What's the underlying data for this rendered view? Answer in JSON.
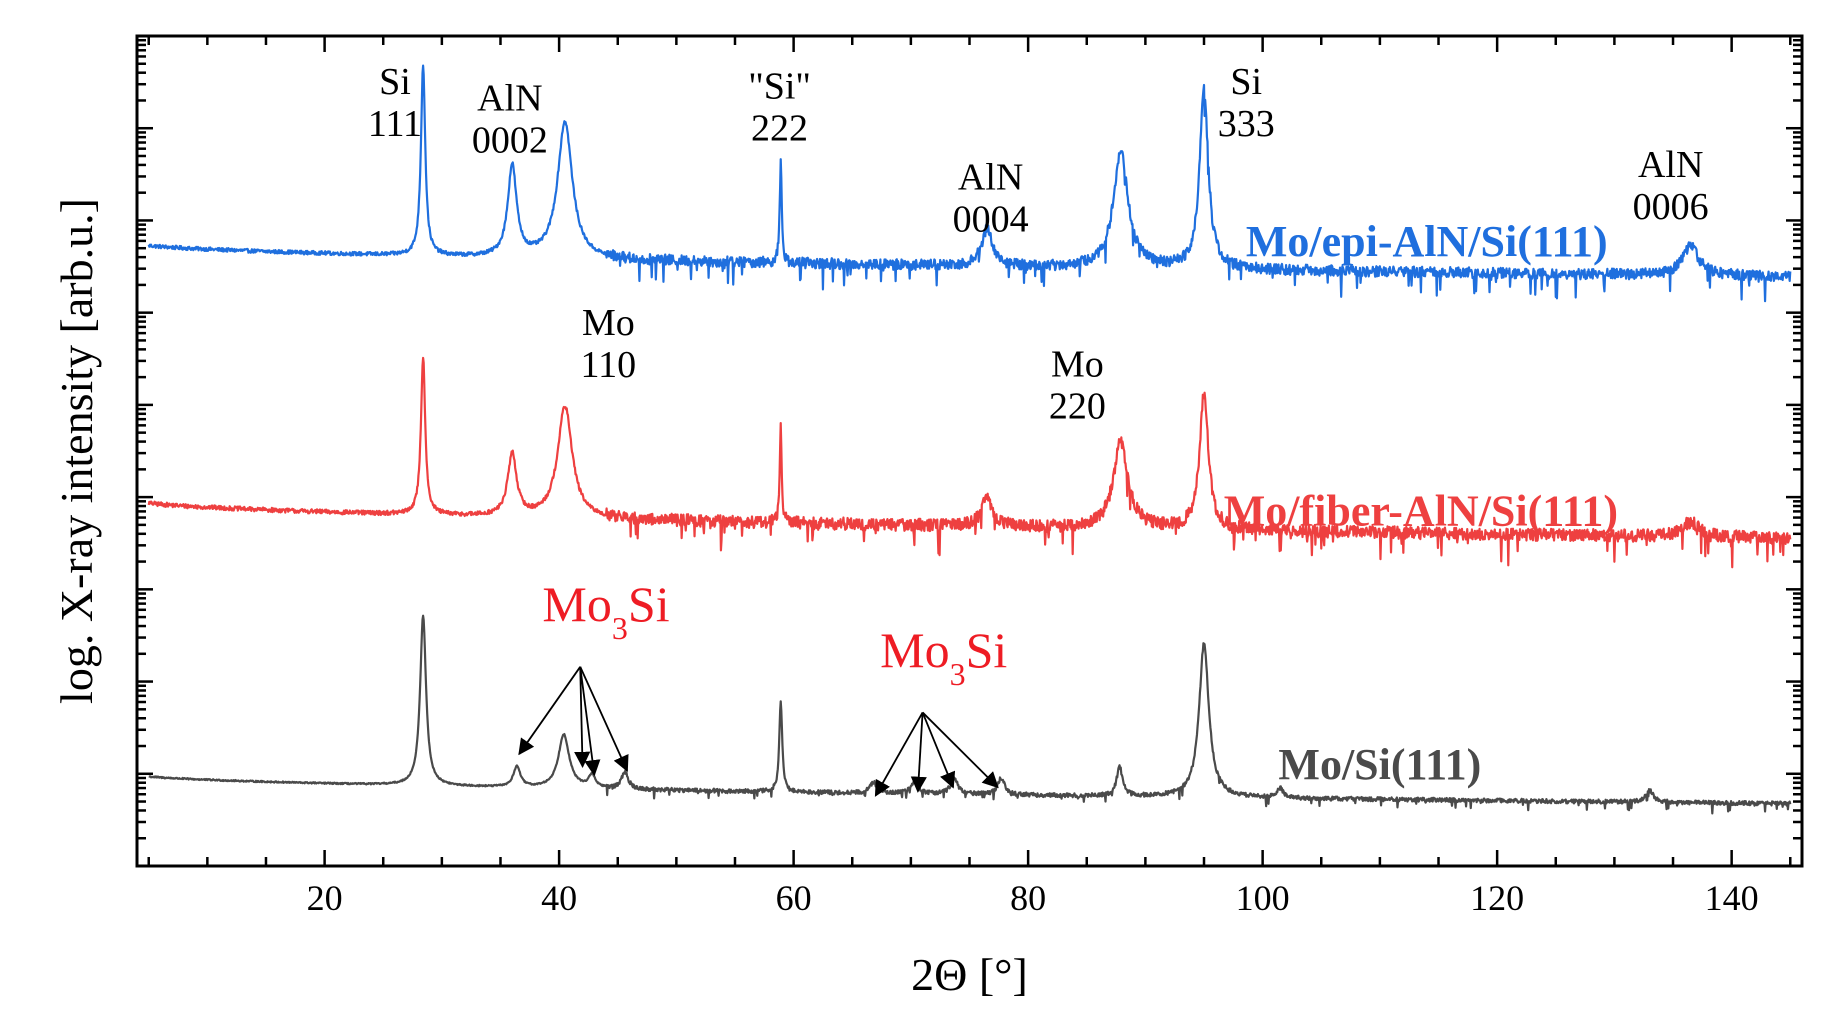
{
  "chart_data": {
    "type": "line",
    "title": "",
    "xlabel": "2Θ [°]",
    "ylabel": "log. X-ray intensity [arb.u.]",
    "xlim": [
      4,
      146
    ],
    "ylim": [
      0,
      100
    ],
    "x_ticks": [
      20,
      40,
      60,
      80,
      100,
      120,
      140
    ],
    "x_tick_labels": [
      "20",
      "40",
      "60",
      "80",
      "100",
      "120",
      "140"
    ],
    "y_ticks_labeled": false,
    "series": [
      {
        "name": "Mo/epi-AlN/Si(111)",
        "color": "#1f6fde",
        "baseline_start": 75.0,
        "baseline_end": 71.0,
        "noise": 1.3,
        "noise_onset": 44,
        "peaks": [
          {
            "x": 28.4,
            "height": 23.0,
            "width": 0.22
          },
          {
            "x": 36.0,
            "height": 11.0,
            "width": 0.45
          },
          {
            "x": 40.5,
            "height": 16.5,
            "width": 0.75
          },
          {
            "x": 58.9,
            "height": 12.5,
            "width": 0.1
          },
          {
            "x": 76.5,
            "height": 4.5,
            "width": 0.55
          },
          {
            "x": 87.9,
            "height": 14.0,
            "width": 0.75
          },
          {
            "x": 95.0,
            "height": 21.5,
            "width": 0.45
          },
          {
            "x": 136.5,
            "height": 3.5,
            "width": 0.85
          }
        ]
      },
      {
        "name": "Mo/fiber-AlN/Si(111)",
        "color": "#ee4040",
        "baseline_start": 44.0,
        "baseline_end": 39.5,
        "noise": 1.5,
        "noise_onset": 44,
        "peaks": [
          {
            "x": 28.4,
            "height": 19.0,
            "width": 0.22
          },
          {
            "x": 36.0,
            "height": 7.5,
            "width": 0.45
          },
          {
            "x": 40.5,
            "height": 13.5,
            "width": 0.75
          },
          {
            "x": 58.9,
            "height": 11.5,
            "width": 0.1
          },
          {
            "x": 76.5,
            "height": 3.5,
            "width": 0.55
          },
          {
            "x": 87.9,
            "height": 10.5,
            "width": 0.75
          },
          {
            "x": 95.0,
            "height": 16.5,
            "width": 0.45
          },
          {
            "x": 136.5,
            "height": 1.8,
            "width": 0.85
          }
        ]
      },
      {
        "name": "Mo/Si(111)",
        "color": "#4a4a4a",
        "baseline_start": 11.0,
        "baseline_end": 7.5,
        "noise": 0.5,
        "noise_onset": 44,
        "peaks": [
          {
            "x": 28.4,
            "height": 20.5,
            "width": 0.3
          },
          {
            "x": 36.4,
            "height": 2.5,
            "width": 0.35
          },
          {
            "x": 40.4,
            "height": 6.5,
            "width": 0.55
          },
          {
            "x": 42.8,
            "height": 1.5,
            "width": 0.35
          },
          {
            "x": 45.6,
            "height": 2.0,
            "width": 0.35
          },
          {
            "x": 58.9,
            "height": 11.0,
            "width": 0.15
          },
          {
            "x": 66.8,
            "height": 1.3,
            "width": 0.35
          },
          {
            "x": 70.3,
            "height": 1.5,
            "width": 0.35
          },
          {
            "x": 73.7,
            "height": 2.0,
            "width": 0.35
          },
          {
            "x": 77.7,
            "height": 2.0,
            "width": 0.35
          },
          {
            "x": 87.8,
            "height": 3.5,
            "width": 0.3
          },
          {
            "x": 95.0,
            "height": 18.5,
            "width": 0.5
          },
          {
            "x": 101.5,
            "height": 1.2,
            "width": 0.3
          },
          {
            "x": 133.0,
            "height": 1.4,
            "width": 0.4
          }
        ]
      }
    ],
    "peak_annotations": [
      {
        "lines": [
          "Si",
          "111"
        ],
        "x": 26.0,
        "y": 93.0
      },
      {
        "lines": [
          "AlN",
          "0002"
        ],
        "x": 35.8,
        "y": 91.0
      },
      {
        "lines": [
          "\"Si\"",
          "222"
        ],
        "x": 58.8,
        "y": 92.5
      },
      {
        "lines": [
          "AlN",
          "0004"
        ],
        "x": 76.8,
        "y": 81.5
      },
      {
        "lines": [
          "Si",
          "333"
        ],
        "x": 98.6,
        "y": 93.0
      },
      {
        "lines": [
          "AlN",
          "0006"
        ],
        "x": 134.8,
        "y": 83.0
      },
      {
        "lines": [
          "Mo",
          "110"
        ],
        "x": 44.2,
        "y": 64.0
      },
      {
        "lines": [
          "Mo",
          "220"
        ],
        "x": 84.2,
        "y": 59.0
      }
    ],
    "phase_annotations": [
      {
        "label": "Mo",
        "subscript": "3",
        "suffix": "Si",
        "x": 44.0,
        "y": 29.5,
        "arrow_origin_x": 41.8,
        "arrow_origin_y": 24.0,
        "arrow_targets": [
          [
            36.6,
            13.5
          ],
          [
            42.0,
            12.0
          ],
          [
            43.0,
            11.0
          ],
          [
            45.8,
            11.5
          ]
        ]
      },
      {
        "label": "Mo",
        "subscript": "3",
        "suffix": "Si",
        "x": 72.8,
        "y": 24.0,
        "arrow_origin_x": 71.0,
        "arrow_origin_y": 18.5,
        "arrow_targets": [
          [
            67.0,
            8.5
          ],
          [
            70.6,
            9.0
          ],
          [
            73.6,
            9.5
          ],
          [
            77.4,
            9.5
          ]
        ]
      }
    ],
    "series_labels": [
      {
        "text": "Mo/epi-AlN/Si(111)",
        "series": 0,
        "x": 114.0,
        "y": 73.5
      },
      {
        "text": "Mo/fiber-AlN/Si(111)",
        "series": 1,
        "x": 113.5,
        "y": 41.0
      },
      {
        "text": "Mo/Si(111)",
        "series": 2,
        "x": 110.0,
        "y": 10.5
      }
    ]
  }
}
